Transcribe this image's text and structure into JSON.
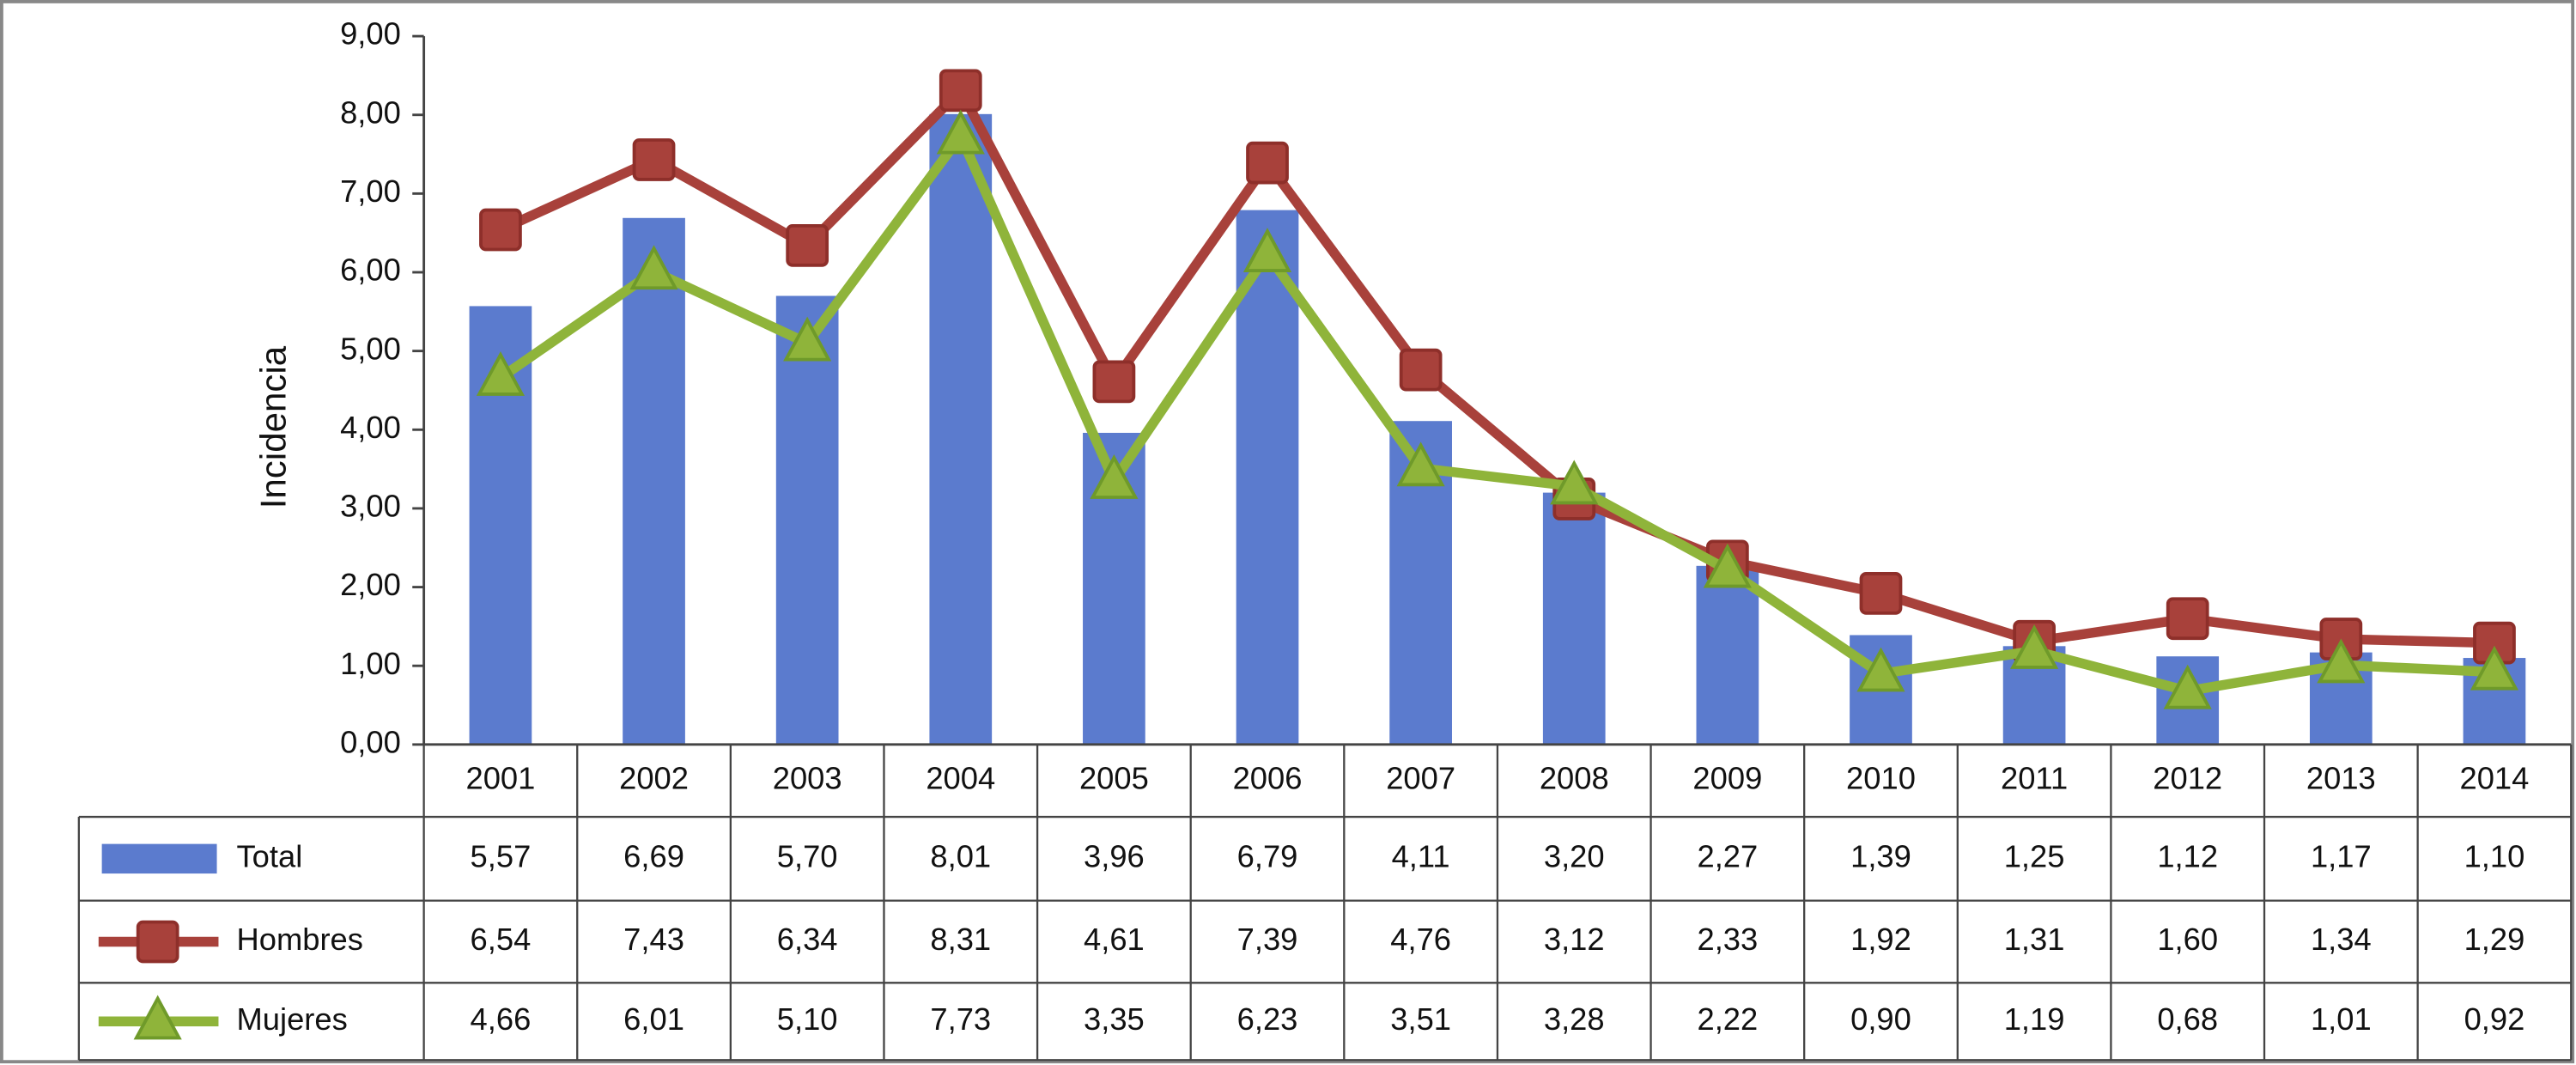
{
  "chart_data": {
    "type": "bar_line",
    "y_label": "Incidencia",
    "categories": [
      "2001",
      "2002",
      "2003",
      "2004",
      "2005",
      "2006",
      "2007",
      "2008",
      "2009",
      "2010",
      "2011",
      "2012",
      "2013",
      "2014"
    ],
    "ylim": [
      0,
      9
    ],
    "yticks": [
      {
        "value": 0,
        "label": "0,00"
      },
      {
        "value": 1,
        "label": "1,00"
      },
      {
        "value": 2,
        "label": "2,00"
      },
      {
        "value": 3,
        "label": "3,00"
      },
      {
        "value": 4,
        "label": "4,00"
      },
      {
        "value": 5,
        "label": "5,00"
      },
      {
        "value": 6,
        "label": "6,00"
      },
      {
        "value": 7,
        "label": "7,00"
      },
      {
        "value": 8,
        "label": "8,00"
      },
      {
        "value": 9,
        "label": "9,00"
      }
    ],
    "series": [
      {
        "name": "Total",
        "type": "bar",
        "color": "#5b7bce",
        "values": [
          5.57,
          6.69,
          5.7,
          8.01,
          3.96,
          6.79,
          4.11,
          3.2,
          2.27,
          1.39,
          1.25,
          1.12,
          1.17,
          1.1
        ],
        "value_labels": [
          "5,57",
          "6,69",
          "5,70",
          "8,01",
          "3,96",
          "6,79",
          "4,11",
          "3,20",
          "2,27",
          "1,39",
          "1,25",
          "1,12",
          "1,17",
          "1,10"
        ]
      },
      {
        "name": "Hombres",
        "type": "line",
        "marker": "square",
        "color": "#a8413b",
        "values": [
          6.54,
          7.43,
          6.34,
          8.31,
          4.61,
          7.39,
          4.76,
          3.12,
          2.33,
          1.92,
          1.31,
          1.6,
          1.34,
          1.29
        ],
        "value_labels": [
          "6,54",
          "7,43",
          "6,34",
          "8,31",
          "4,61",
          "7,39",
          "4,76",
          "3,12",
          "2,33",
          "1,92",
          "1,31",
          "1,60",
          "1,34",
          "1,29"
        ]
      },
      {
        "name": "Mujeres",
        "type": "line",
        "marker": "triangle",
        "color": "#8fb43a",
        "values": [
          4.66,
          6.01,
          5.1,
          7.73,
          3.35,
          6.23,
          3.51,
          3.28,
          2.22,
          0.9,
          1.19,
          0.68,
          1.01,
          0.92
        ],
        "value_labels": [
          "4,66",
          "6,01",
          "5,10",
          "7,73",
          "3,35",
          "6,23",
          "3,51",
          "3,28",
          "2,22",
          "0,90",
          "1,19",
          "0,68",
          "1,01",
          "0,92"
        ]
      }
    ]
  }
}
